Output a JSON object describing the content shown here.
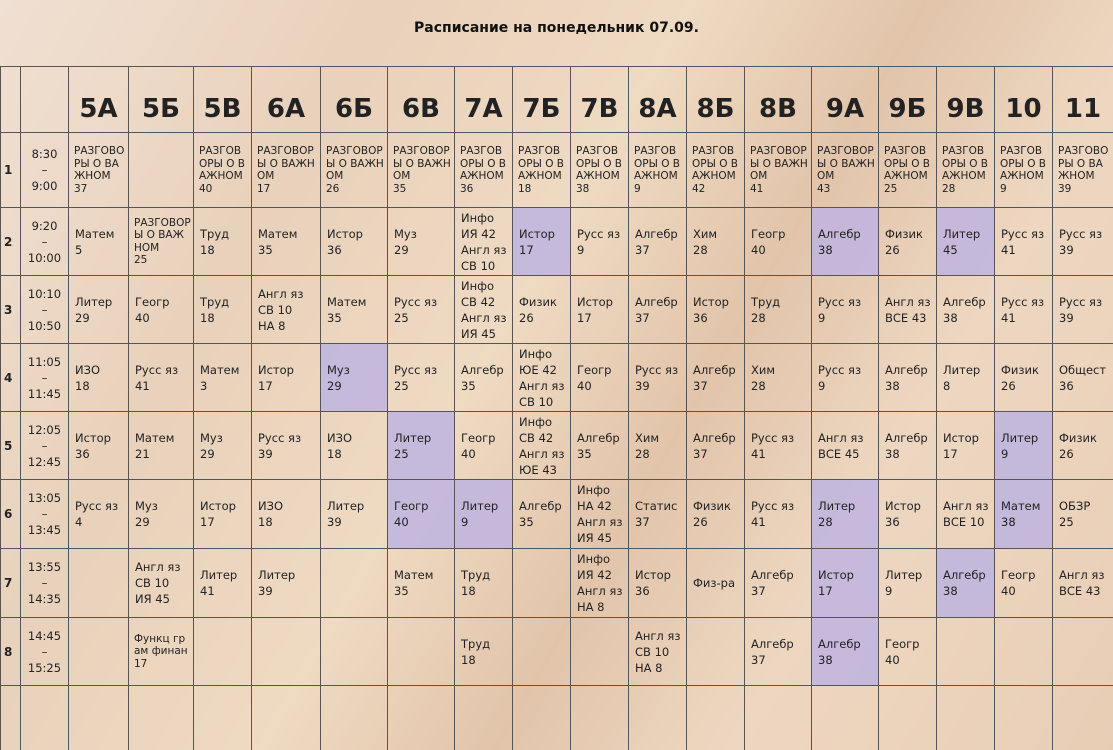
{
  "title": "Расписание на понедельник 07.09.",
  "columns": [
    "5А",
    "5Б",
    "5В",
    "6А",
    "6Б",
    "6В",
    "7А",
    "7Б",
    "7В",
    "8А",
    "8Б",
    "8В",
    "9А",
    "9Б",
    "9В",
    "10",
    "11"
  ],
  "rows": [
    {
      "number": "1",
      "time": [
        "8:30",
        "–",
        "9:00"
      ],
      "cells": [
        {
          "lines": [
            "РАЗГОВОРЫ О ВАЖНОМ",
            "37"
          ]
        },
        null,
        {
          "lines": [
            "РАЗГОВОРЫ О ВАЖНОМ",
            "40"
          ]
        },
        {
          "lines": [
            "РАЗГОВОРЫ О ВАЖНОМ",
            "17"
          ]
        },
        {
          "lines": [
            "РАЗГОВОРЫ О ВАЖНОМ",
            "26"
          ]
        },
        {
          "lines": [
            "РАЗГОВОРЫ О ВАЖНОМ",
            "35"
          ]
        },
        {
          "lines": [
            "РАЗГОВОРЫ О ВАЖНОМ",
            "36"
          ]
        },
        {
          "lines": [
            "РАЗГОВОРЫ О ВАЖНОМ",
            "18"
          ]
        },
        {
          "lines": [
            "РАЗГОВОРЫ О ВАЖНОМ",
            "38"
          ]
        },
        {
          "lines": [
            "РАЗГОВОРЫ О ВАЖНОМ",
            "9"
          ]
        },
        {
          "lines": [
            "РАЗГОВОРЫ О ВАЖНОМ",
            "42"
          ]
        },
        {
          "lines": [
            "РАЗГОВОРЫ О ВАЖНОМ",
            "41"
          ]
        },
        {
          "lines": [
            "РАЗГОВОРЫ О ВАЖНОМ",
            "43"
          ]
        },
        {
          "lines": [
            "РАЗГОВОРЫ О ВАЖНОМ",
            "25"
          ]
        },
        {
          "lines": [
            "РАЗГОВОРЫ О ВАЖНОМ",
            "28"
          ]
        },
        {
          "lines": [
            "РАЗГОВОРЫ О ВАЖНОМ",
            "9"
          ]
        },
        {
          "lines": [
            "РАЗГОВОРЫ О ВАЖНОМ",
            "39"
          ]
        }
      ]
    },
    {
      "number": "2",
      "time": [
        "9:20",
        "–",
        "10:00"
      ],
      "cells": [
        {
          "lines": [
            "Матем",
            "5"
          ]
        },
        {
          "lines": [
            "РАЗГОВОРЫ О ВАЖНОМ",
            "25"
          ]
        },
        {
          "lines": [
            "Труд",
            "18"
          ]
        },
        {
          "lines": [
            "Матем",
            "35"
          ]
        },
        {
          "lines": [
            "Истор",
            "36"
          ]
        },
        {
          "lines": [
            "Муз",
            "29"
          ]
        },
        {
          "lines": [
            "Инфо",
            "ИЯ 42",
            "Англ яз",
            "СВ 10"
          ]
        },
        {
          "lines": [
            "Истор",
            "17"
          ],
          "shaded": true
        },
        {
          "lines": [
            "Русс яз",
            "9"
          ]
        },
        {
          "lines": [
            "Алгебр",
            "37"
          ]
        },
        {
          "lines": [
            "Хим",
            "28"
          ]
        },
        {
          "lines": [
            "Геогр",
            "40"
          ]
        },
        {
          "lines": [
            "Алгебр",
            "38"
          ],
          "shaded": true
        },
        {
          "lines": [
            "Физик",
            "26"
          ]
        },
        {
          "lines": [
            "Литер",
            "45"
          ],
          "shaded": true
        },
        {
          "lines": [
            "Русс яз",
            "41"
          ]
        },
        {
          "lines": [
            "Русс яз",
            "39"
          ]
        }
      ]
    },
    {
      "number": "3",
      "time": [
        "10:10",
        "–",
        "10:50"
      ],
      "cells": [
        {
          "lines": [
            "Литер",
            "29"
          ]
        },
        {
          "lines": [
            "Геогр",
            "40"
          ]
        },
        {
          "lines": [
            "Труд",
            "18"
          ]
        },
        {
          "lines": [
            "Англ яз",
            "СВ 10",
            "НА 8"
          ]
        },
        {
          "lines": [
            "Матем",
            "35"
          ]
        },
        {
          "lines": [
            "Русс яз",
            "25"
          ]
        },
        {
          "lines": [
            "Инфо",
            "СВ 42",
            "Англ яз",
            "ИЯ 45"
          ]
        },
        {
          "lines": [
            "Физик",
            "26"
          ]
        },
        {
          "lines": [
            "Истор",
            "17"
          ]
        },
        {
          "lines": [
            "Алгебр",
            "37"
          ]
        },
        {
          "lines": [
            "Истор",
            "36"
          ]
        },
        {
          "lines": [
            "Труд",
            "28"
          ]
        },
        {
          "lines": [
            "Русс яз",
            "9"
          ]
        },
        {
          "lines": [
            "Англ яз",
            "ВСЕ 43"
          ]
        },
        {
          "lines": [
            "Алгебр",
            "38"
          ]
        },
        {
          "lines": [
            "Русс яз",
            "41"
          ]
        },
        {
          "lines": [
            "Русс яз",
            "39"
          ]
        }
      ]
    },
    {
      "number": "4",
      "time": [
        "11:05",
        "–",
        "11:45"
      ],
      "cells": [
        {
          "lines": [
            "ИЗО",
            "18"
          ]
        },
        {
          "lines": [
            "Русс яз",
            "41"
          ]
        },
        {
          "lines": [
            "Матем",
            "3"
          ]
        },
        {
          "lines": [
            "Истор",
            "17"
          ]
        },
        {
          "lines": [
            "Муз",
            "29"
          ],
          "shaded": true
        },
        {
          "lines": [
            "Русс яз",
            "25"
          ]
        },
        {
          "lines": [
            "Алгебр",
            "35"
          ]
        },
        {
          "lines": [
            "Инфо",
            "ЮЕ 42",
            "Англ яз",
            "СВ 10"
          ]
        },
        {
          "lines": [
            "Геогр",
            "40"
          ]
        },
        {
          "lines": [
            "Русс яз",
            "39"
          ]
        },
        {
          "lines": [
            "Алгебр",
            "37"
          ]
        },
        {
          "lines": [
            "Хим",
            "28"
          ]
        },
        {
          "lines": [
            "Русс яз",
            "9"
          ]
        },
        {
          "lines": [
            "Алгебр",
            "38"
          ]
        },
        {
          "lines": [
            "Литер",
            "8"
          ]
        },
        {
          "lines": [
            "Физик",
            "26"
          ]
        },
        {
          "lines": [
            "Общест",
            "36"
          ]
        }
      ]
    },
    {
      "number": "5",
      "time": [
        "12:05",
        "–",
        "12:45"
      ],
      "cells": [
        {
          "lines": [
            "Истор",
            "36"
          ]
        },
        {
          "lines": [
            "Матем",
            "21"
          ]
        },
        {
          "lines": [
            "Муз",
            "29"
          ]
        },
        {
          "lines": [
            "Русс яз",
            "39"
          ]
        },
        {
          "lines": [
            "ИЗО",
            "18"
          ]
        },
        {
          "lines": [
            "Литер",
            "25"
          ],
          "shaded": true
        },
        {
          "lines": [
            "Геогр",
            "40"
          ]
        },
        {
          "lines": [
            "Инфо",
            "СВ 42",
            "Англ яз",
            "ЮЕ 43"
          ]
        },
        {
          "lines": [
            "Алгебр",
            "35"
          ]
        },
        {
          "lines": [
            "Хим",
            "28"
          ]
        },
        {
          "lines": [
            "Алгебр",
            "37"
          ]
        },
        {
          "lines": [
            "Русс яз",
            "41"
          ]
        },
        {
          "lines": [
            "Англ яз",
            "ВСЕ 45"
          ]
        },
        {
          "lines": [
            "Алгебр",
            "38"
          ]
        },
        {
          "lines": [
            "Истор",
            "17"
          ]
        },
        {
          "lines": [
            "Литер",
            "9"
          ],
          "shaded": true
        },
        {
          "lines": [
            "Физик",
            "26"
          ]
        }
      ]
    },
    {
      "number": "6",
      "time": [
        "13:05",
        "–",
        "13:45"
      ],
      "cells": [
        {
          "lines": [
            "Русс яз",
            "4"
          ]
        },
        {
          "lines": [
            "Муз",
            "29"
          ]
        },
        {
          "lines": [
            "Истор",
            "17"
          ]
        },
        {
          "lines": [
            "ИЗО",
            "18"
          ]
        },
        {
          "lines": [
            "Литер",
            "39"
          ]
        },
        {
          "lines": [
            "Геогр",
            "40"
          ],
          "shaded": true
        },
        {
          "lines": [
            "Литер",
            "9"
          ],
          "shaded": true
        },
        {
          "lines": [
            "Алгебр",
            "35"
          ]
        },
        {
          "lines": [
            "Инфо",
            "НА 42",
            "Англ яз",
            "ИЯ 45"
          ]
        },
        {
          "lines": [
            "Статис",
            "37"
          ]
        },
        {
          "lines": [
            "Физик",
            "26"
          ]
        },
        {
          "lines": [
            "Русс яз",
            "41"
          ]
        },
        {
          "lines": [
            "Литер",
            "28"
          ],
          "shaded": true
        },
        {
          "lines": [
            "Истор",
            "36"
          ]
        },
        {
          "lines": [
            "Англ яз",
            "ВСЕ 10"
          ]
        },
        {
          "lines": [
            "Матем",
            "38"
          ],
          "shaded": true
        },
        {
          "lines": [
            "ОБЗР",
            "25"
          ]
        }
      ]
    },
    {
      "number": "7",
      "time": [
        "13:55",
        "–",
        "14:35"
      ],
      "cells": [
        null,
        {
          "lines": [
            "Англ яз",
            "СВ 10",
            "ИЯ 45"
          ]
        },
        {
          "lines": [
            "Литер",
            "41"
          ]
        },
        {
          "lines": [
            "Литер",
            "39"
          ]
        },
        null,
        {
          "lines": [
            "Матем",
            "35"
          ]
        },
        {
          "lines": [
            "Труд",
            "18"
          ]
        },
        null,
        {
          "lines": [
            "Инфо",
            "ИЯ 42",
            "Англ яз",
            "НА 8"
          ]
        },
        {
          "lines": [
            "Истор",
            "36"
          ]
        },
        {
          "lines": [
            "Физ-ра"
          ]
        },
        {
          "lines": [
            "Алгебр",
            "37"
          ]
        },
        {
          "lines": [
            "Истор",
            "17"
          ],
          "shaded": true
        },
        {
          "lines": [
            "Литер",
            "9"
          ]
        },
        {
          "lines": [
            "Алгебр",
            "38"
          ],
          "shaded": true
        },
        {
          "lines": [
            "Геогр",
            "40"
          ]
        },
        {
          "lines": [
            "Англ яз",
            "ВСЕ 43"
          ]
        }
      ]
    },
    {
      "number": "8",
      "time": [
        "14:45",
        "–",
        "15:25"
      ],
      "cells": [
        null,
        {
          "lines": [
            "Функц грам финан",
            "17"
          ]
        },
        null,
        null,
        null,
        null,
        {
          "lines": [
            "Труд",
            "18"
          ]
        },
        null,
        null,
        {
          "lines": [
            "Англ яз",
            "СВ 10",
            "НА 8"
          ]
        },
        null,
        {
          "lines": [
            "Алгебр",
            "37"
          ]
        },
        {
          "lines": [
            "Алгебр",
            "38"
          ],
          "shaded": true
        },
        {
          "lines": [
            "Геогр",
            "40"
          ]
        },
        null,
        null,
        null
      ]
    }
  ]
}
